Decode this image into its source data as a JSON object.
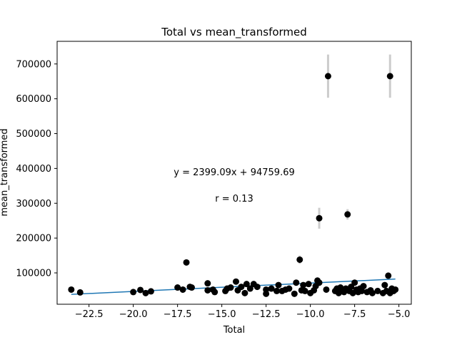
{
  "chart_data": {
    "type": "scatter",
    "title": "Total vs mean_transformed",
    "xlabel": "Total",
    "ylabel": "mean_transformed",
    "xlim": [
      -24.3,
      -4.3
    ],
    "ylim": [
      10000,
      765000
    ],
    "xticks": [
      -22.5,
      -20.0,
      -17.5,
      -15.0,
      -12.5,
      -10.0,
      -7.5,
      -5.0
    ],
    "xtick_labels": [
      "−22.5",
      "−20.0",
      "−17.5",
      "−15.0",
      "−12.5",
      "−10.0",
      "−7.5",
      "−5.0"
    ],
    "yticks": [
      100000,
      200000,
      300000,
      400000,
      500000,
      600000,
      700000
    ],
    "ytick_labels": [
      "100000",
      "200000",
      "300000",
      "400000",
      "500000",
      "600000",
      "700000"
    ],
    "grid": false,
    "point_color": "#000000",
    "errorbar_color": "#cccccc",
    "fit_color": "#1f77b4",
    "fit_line": {
      "slope": 2399.09,
      "intercept": 94759.69,
      "x_range": [
        -23.5,
        -5.2
      ]
    },
    "annotations": {
      "equation": "y = 2399.09x + 94759.69",
      "r_label": "r = 0.13"
    },
    "points": [
      {
        "x": -23.5,
        "y": 52000
      },
      {
        "x": -23.0,
        "y": 44000
      },
      {
        "x": -20.0,
        "y": 45000
      },
      {
        "x": -19.6,
        "y": 51000
      },
      {
        "x": -19.3,
        "y": 42000
      },
      {
        "x": -19.0,
        "y": 47000
      },
      {
        "x": -17.5,
        "y": 58000
      },
      {
        "x": -17.2,
        "y": 52000
      },
      {
        "x": -17.0,
        "y": 130000,
        "err": 5000
      },
      {
        "x": -16.8,
        "y": 60000
      },
      {
        "x": -16.7,
        "y": 58000
      },
      {
        "x": -15.8,
        "y": 70000
      },
      {
        "x": -15.8,
        "y": 50000
      },
      {
        "x": -15.5,
        "y": 52000
      },
      {
        "x": -15.4,
        "y": 45000
      },
      {
        "x": -14.8,
        "y": 48000
      },
      {
        "x": -14.7,
        "y": 55000
      },
      {
        "x": -14.5,
        "y": 58000
      },
      {
        "x": -14.2,
        "y": 75000
      },
      {
        "x": -14.1,
        "y": 50000
      },
      {
        "x": -13.9,
        "y": 60000
      },
      {
        "x": -13.7,
        "y": 42000
      },
      {
        "x": -13.6,
        "y": 68000
      },
      {
        "x": -13.4,
        "y": 55000
      },
      {
        "x": -13.2,
        "y": 68000
      },
      {
        "x": -13.0,
        "y": 60000
      },
      {
        "x": -12.5,
        "y": 52000
      },
      {
        "x": -12.5,
        "y": 40000
      },
      {
        "x": -12.2,
        "y": 55000
      },
      {
        "x": -11.9,
        "y": 48000
      },
      {
        "x": -11.8,
        "y": 65000
      },
      {
        "x": -11.6,
        "y": 48000
      },
      {
        "x": -11.4,
        "y": 52000
      },
      {
        "x": -11.2,
        "y": 55000
      },
      {
        "x": -10.9,
        "y": 40000
      },
      {
        "x": -10.8,
        "y": 72000
      },
      {
        "x": -10.6,
        "y": 138000,
        "err": 12000
      },
      {
        "x": -10.5,
        "y": 50000
      },
      {
        "x": -10.4,
        "y": 65000
      },
      {
        "x": -10.3,
        "y": 48000
      },
      {
        "x": -10.1,
        "y": 68000
      },
      {
        "x": -10.0,
        "y": 42000
      },
      {
        "x": -9.8,
        "y": 50000
      },
      {
        "x": -9.7,
        "y": 62000
      },
      {
        "x": -9.6,
        "y": 78000
      },
      {
        "x": -9.5,
        "y": 72000
      },
      {
        "x": -9.5,
        "y": 257000,
        "err": 30000
      },
      {
        "x": -9.1,
        "y": 52000
      },
      {
        "x": -9.0,
        "y": 665000,
        "err": 62000
      },
      {
        "x": -8.6,
        "y": 48000
      },
      {
        "x": -8.5,
        "y": 55000
      },
      {
        "x": -8.4,
        "y": 42000
      },
      {
        "x": -8.3,
        "y": 58000
      },
      {
        "x": -8.2,
        "y": 50000
      },
      {
        "x": -8.1,
        "y": 45000
      },
      {
        "x": -8.0,
        "y": 55000
      },
      {
        "x": -7.9,
        "y": 268000,
        "err": 15000
      },
      {
        "x": -7.8,
        "y": 48000
      },
      {
        "x": -7.7,
        "y": 60000
      },
      {
        "x": -7.6,
        "y": 42000
      },
      {
        "x": -7.5,
        "y": 72000
      },
      {
        "x": -7.4,
        "y": 52000
      },
      {
        "x": -7.3,
        "y": 45000
      },
      {
        "x": -7.2,
        "y": 55000
      },
      {
        "x": -7.1,
        "y": 48000
      },
      {
        "x": -7.0,
        "y": 62000
      },
      {
        "x": -6.8,
        "y": 45000
      },
      {
        "x": -6.6,
        "y": 50000
      },
      {
        "x": -6.5,
        "y": 42000
      },
      {
        "x": -6.2,
        "y": 48000
      },
      {
        "x": -5.9,
        "y": 42000
      },
      {
        "x": -5.8,
        "y": 65000
      },
      {
        "x": -5.7,
        "y": 48000
      },
      {
        "x": -5.6,
        "y": 92000
      },
      {
        "x": -5.5,
        "y": 665000,
        "err": 62000
      },
      {
        "x": -5.5,
        "y": 42000
      },
      {
        "x": -5.4,
        "y": 55000
      },
      {
        "x": -5.3,
        "y": 48000
      },
      {
        "x": -5.2,
        "y": 52000
      }
    ]
  }
}
